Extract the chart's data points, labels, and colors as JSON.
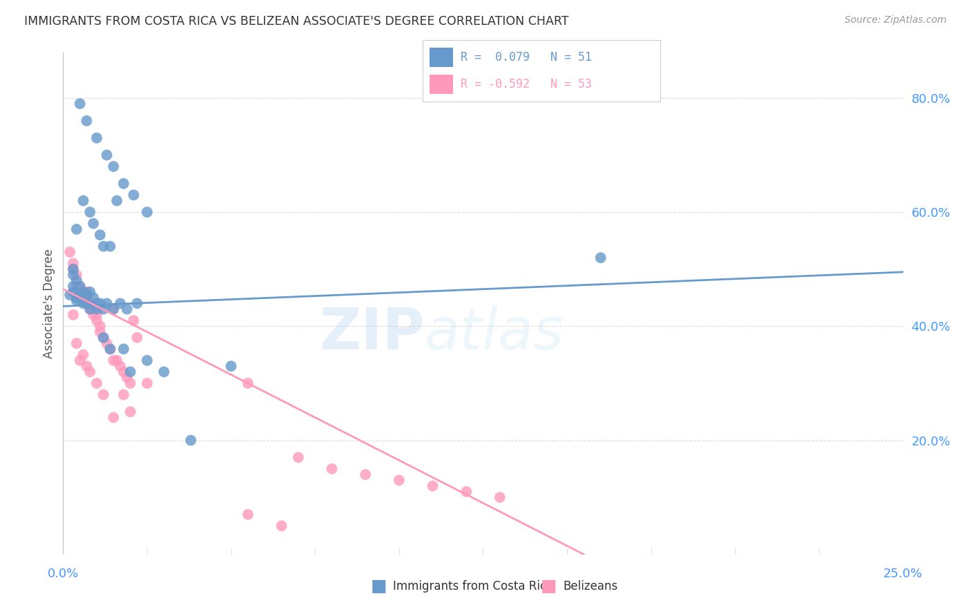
{
  "title": "IMMIGRANTS FROM COSTA RICA VS BELIZEAN ASSOCIATE'S DEGREE CORRELATION CHART",
  "source": "Source: ZipAtlas.com",
  "ylabel": "Associate's Degree",
  "ylabel_tick_vals": [
    0.2,
    0.4,
    0.6,
    0.8
  ],
  "xmin": 0.0,
  "xmax": 0.25,
  "ymin": 0.0,
  "ymax": 0.88,
  "color_blue": "#6699CC",
  "color_pink": "#FF99BB",
  "blue_r": "0.079",
  "blue_n": "51",
  "pink_r": "-0.592",
  "pink_n": "53",
  "blue_scatter_x": [
    0.005,
    0.007,
    0.01,
    0.013,
    0.015,
    0.018,
    0.021,
    0.025,
    0.004,
    0.006,
    0.008,
    0.009,
    0.011,
    0.012,
    0.014,
    0.016,
    0.003,
    0.003,
    0.004,
    0.005,
    0.006,
    0.007,
    0.008,
    0.009,
    0.01,
    0.011,
    0.012,
    0.013,
    0.015,
    0.017,
    0.019,
    0.022,
    0.003,
    0.004,
    0.005,
    0.006,
    0.007,
    0.008,
    0.01,
    0.012,
    0.014,
    0.018,
    0.02,
    0.025,
    0.03,
    0.038,
    0.05,
    0.16,
    0.002,
    0.003,
    0.004
  ],
  "blue_scatter_y": [
    0.79,
    0.76,
    0.73,
    0.7,
    0.68,
    0.65,
    0.63,
    0.6,
    0.57,
    0.62,
    0.6,
    0.58,
    0.56,
    0.54,
    0.54,
    0.62,
    0.5,
    0.49,
    0.48,
    0.47,
    0.46,
    0.455,
    0.46,
    0.45,
    0.44,
    0.44,
    0.43,
    0.44,
    0.43,
    0.44,
    0.43,
    0.44,
    0.46,
    0.45,
    0.455,
    0.44,
    0.44,
    0.43,
    0.43,
    0.38,
    0.36,
    0.36,
    0.32,
    0.34,
    0.32,
    0.2,
    0.33,
    0.52,
    0.455,
    0.47,
    0.445
  ],
  "pink_scatter_x": [
    0.002,
    0.003,
    0.003,
    0.004,
    0.004,
    0.005,
    0.005,
    0.006,
    0.006,
    0.007,
    0.007,
    0.008,
    0.008,
    0.009,
    0.009,
    0.01,
    0.01,
    0.011,
    0.011,
    0.012,
    0.013,
    0.014,
    0.015,
    0.015,
    0.016,
    0.017,
    0.018,
    0.019,
    0.02,
    0.021,
    0.022,
    0.025,
    0.003,
    0.004,
    0.005,
    0.006,
    0.007,
    0.008,
    0.01,
    0.012,
    0.015,
    0.018,
    0.02,
    0.055,
    0.07,
    0.08,
    0.09,
    0.1,
    0.11,
    0.12,
    0.13,
    0.055,
    0.065
  ],
  "pink_scatter_y": [
    0.53,
    0.51,
    0.5,
    0.49,
    0.47,
    0.47,
    0.46,
    0.46,
    0.45,
    0.46,
    0.45,
    0.44,
    0.43,
    0.43,
    0.42,
    0.42,
    0.41,
    0.4,
    0.39,
    0.38,
    0.37,
    0.36,
    0.34,
    0.43,
    0.34,
    0.33,
    0.32,
    0.31,
    0.3,
    0.41,
    0.38,
    0.3,
    0.42,
    0.37,
    0.34,
    0.35,
    0.33,
    0.32,
    0.3,
    0.28,
    0.24,
    0.28,
    0.25,
    0.3,
    0.17,
    0.15,
    0.14,
    0.13,
    0.12,
    0.11,
    0.1,
    0.07,
    0.05
  ],
  "blue_line_x": [
    0.0,
    0.25
  ],
  "blue_line_y": [
    0.435,
    0.495
  ],
  "pink_line_x": [
    0.0,
    0.155
  ],
  "pink_line_y": [
    0.465,
    0.0
  ],
  "grid_color": "#DDDDDD",
  "title_color": "#333333",
  "axis_color": "#4499FF",
  "watermark_zip": "ZIP",
  "watermark_atlas": "atlas"
}
